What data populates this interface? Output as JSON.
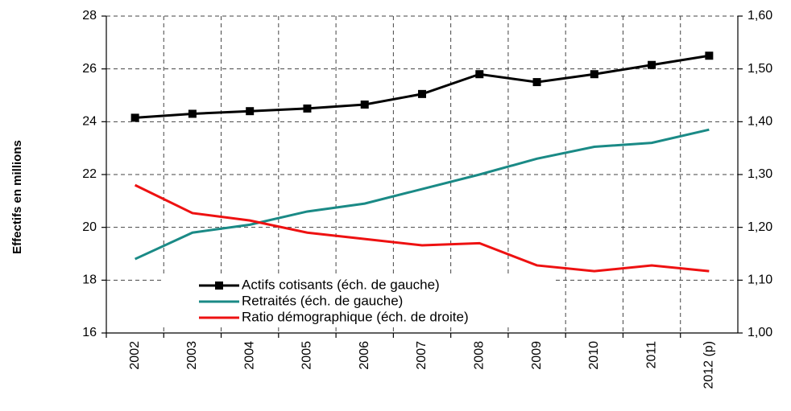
{
  "chart_data": {
    "type": "line",
    "y_label": "Effectifs en millions",
    "categories": [
      "2002",
      "2003",
      "2004",
      "2005",
      "2006",
      "2007",
      "2008",
      "2009",
      "2010",
      "2011",
      "2012 (p)"
    ],
    "series": [
      {
        "name": "Actifs cotisants (éch. de gauche)",
        "color": "#000000",
        "marker": "square",
        "values": [
          24.15,
          24.3,
          24.4,
          24.5,
          24.65,
          25.05,
          25.8,
          25.5,
          25.8,
          26.15,
          26.5
        ]
      },
      {
        "name": "Retraités (éch. de gauche)",
        "color": "#1a8a86",
        "values": [
          18.8,
          19.8,
          20.1,
          20.6,
          20.9,
          21.45,
          22.0,
          22.6,
          23.05,
          23.2,
          23.7
        ]
      },
      {
        "name": "Ratio démographique (éch. de droite)",
        "color": "#ee1111",
        "axis": "y2",
        "values": [
          1.28,
          1.227,
          1.213,
          1.19,
          1.178,
          1.166,
          1.17,
          1.128,
          1.117,
          1.128,
          1.117
        ]
      }
    ],
    "ylim": [
      16,
      28
    ],
    "yticks": [
      16,
      18,
      20,
      22,
      24,
      26,
      28
    ],
    "y2lim": [
      1.0,
      1.6
    ],
    "y2ticks": [
      {
        "value": 1.0,
        "label": "1,00"
      },
      {
        "value": 1.1,
        "label": "1,10"
      },
      {
        "value": 1.2,
        "label": "1,20"
      },
      {
        "value": 1.3,
        "label": "1,30"
      },
      {
        "value": 1.4,
        "label": "1,40"
      },
      {
        "value": 1.5,
        "label": "1,50"
      },
      {
        "value": 1.6,
        "label": "1,60"
      }
    ],
    "grid": true
  }
}
